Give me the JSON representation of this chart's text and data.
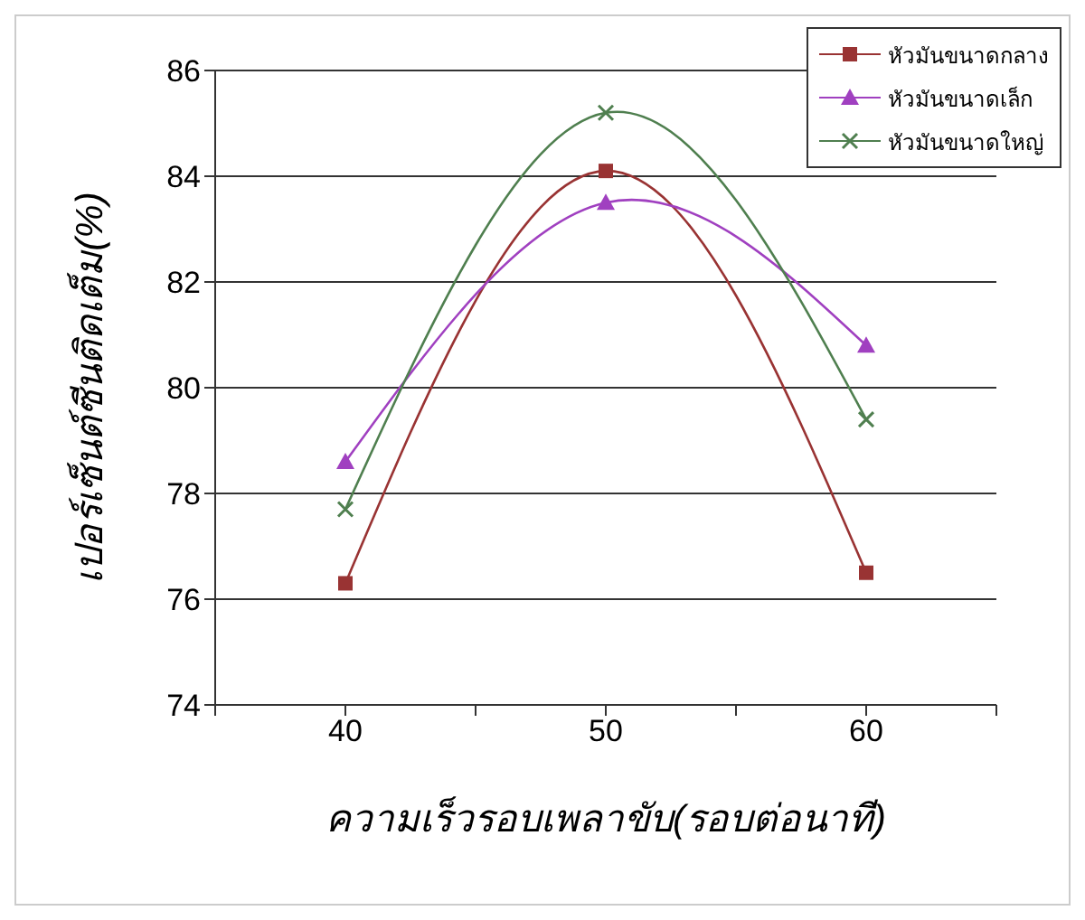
{
  "chart_data": {
    "type": "line",
    "xlabel": "ความเร็วรอบเพลาขับ(รอบต่อนาที)",
    "ylabel": "เปอร์เซ็นต์ซีนติดเต็ม(%)",
    "x": [
      40,
      50,
      60
    ],
    "series": [
      {
        "name": "หัวมันขนาดกลาง",
        "color": "#993333",
        "marker": "square",
        "values": [
          76.3,
          84.1,
          76.5
        ]
      },
      {
        "name": "หัวมันขนาดเล็ก",
        "color": "#a040c0",
        "marker": "triangle",
        "values": [
          78.6,
          83.5,
          80.8
        ]
      },
      {
        "name": "หัวมันขนาดใหญ่",
        "color": "#4f7f4f",
        "marker": "cross",
        "values": [
          77.7,
          85.2,
          79.4
        ]
      }
    ],
    "xlim": [
      35,
      65
    ],
    "xticks": [
      {
        "value": 35,
        "label": null
      },
      40,
      {
        "value": 45,
        "label": null
      },
      50,
      {
        "value": 55,
        "label": null
      },
      60,
      {
        "value": 65,
        "label": null
      }
    ],
    "ylim": [
      74,
      86
    ],
    "yticks": [
      74,
      76,
      78,
      80,
      82,
      84,
      86
    ],
    "grid": "y",
    "legend": "top right",
    "line_style": "solid"
  }
}
